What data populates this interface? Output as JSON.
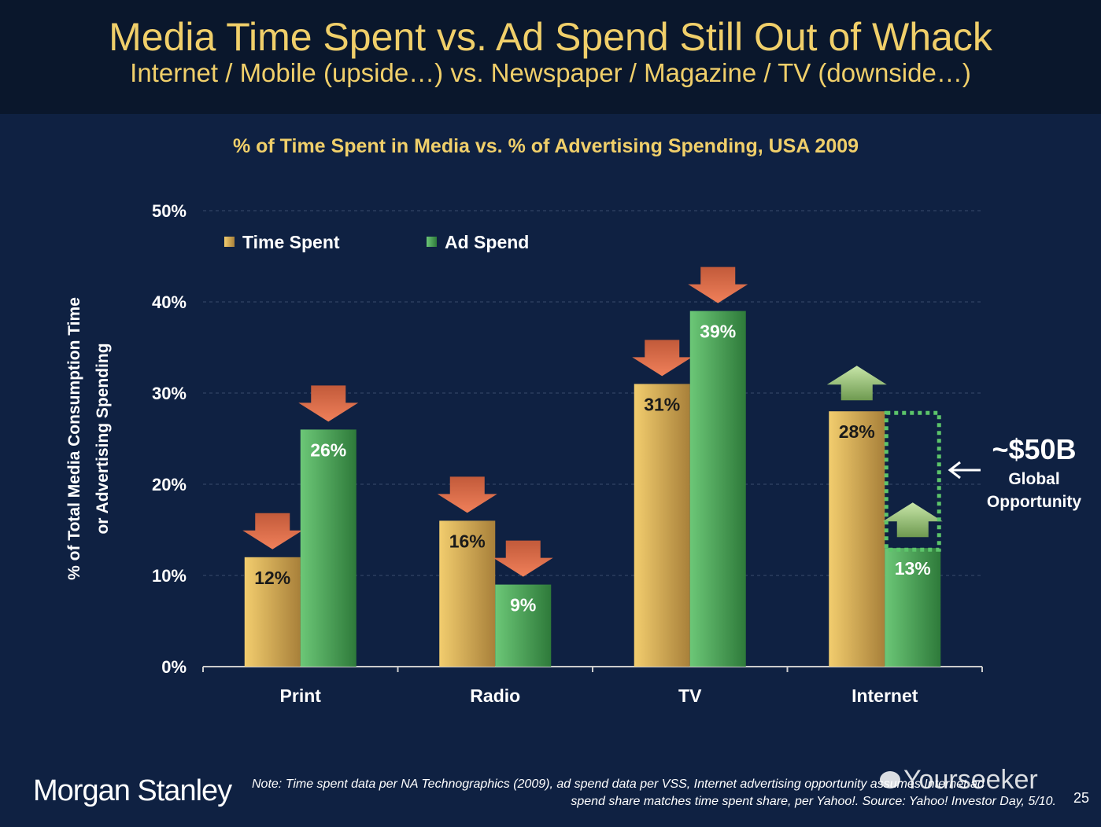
{
  "header": {
    "title": "Media Time Spent vs. Ad Spend Still Out of Whack",
    "subtitle": "Internet / Mobile (upside…) vs. Newspaper / Magazine / TV (downside…)"
  },
  "chart_data": {
    "type": "bar",
    "title": "% of Time Spent in Media vs. % of Advertising Spending, USA 2009",
    "xlabel": "",
    "ylabel": "% of Total Media Consumption Time or Advertising Spending",
    "ylabel_lines": [
      "% of Total Media Consumption Time",
      "or Advertising Spending"
    ],
    "categories": [
      "Print",
      "Radio",
      "TV",
      "Internet"
    ],
    "series": [
      {
        "name": "Time Spent",
        "values": [
          12,
          16,
          31,
          28
        ],
        "color": "#e0b65a",
        "trend": [
          "down",
          "down",
          "down",
          "up"
        ]
      },
      {
        "name": "Ad Spend",
        "values": [
          26,
          9,
          39,
          13
        ],
        "color": "#4fae5c",
        "trend": [
          "down",
          "down",
          "down",
          "up"
        ]
      }
    ],
    "data_labels": [
      [
        "12%",
        "16%",
        "31%",
        "28%"
      ],
      [
        "26%",
        "9%",
        "39%",
        "13%"
      ]
    ],
    "ylim": [
      0,
      50
    ],
    "yticks": [
      "0%",
      "10%",
      "20%",
      "30%",
      "40%",
      "50%"
    ],
    "grid": true,
    "legend": "top-left",
    "annotation": {
      "amount": "~$50B",
      "line1": "Global",
      "line2": "Opportunity",
      "gap_to": 28
    }
  },
  "footer": {
    "brand": "Morgan Stanley",
    "note_line1": "Note: Time spent data per NA Technographics (2009), ad spend data per VSS, Internet advertising opportunity assumes Internet ad",
    "note_line2": "spend share matches time spent share, per Yahoo!. Source: Yahoo! Investor Day, 5/10.",
    "page": "25",
    "watermark": "Yourseeker"
  }
}
